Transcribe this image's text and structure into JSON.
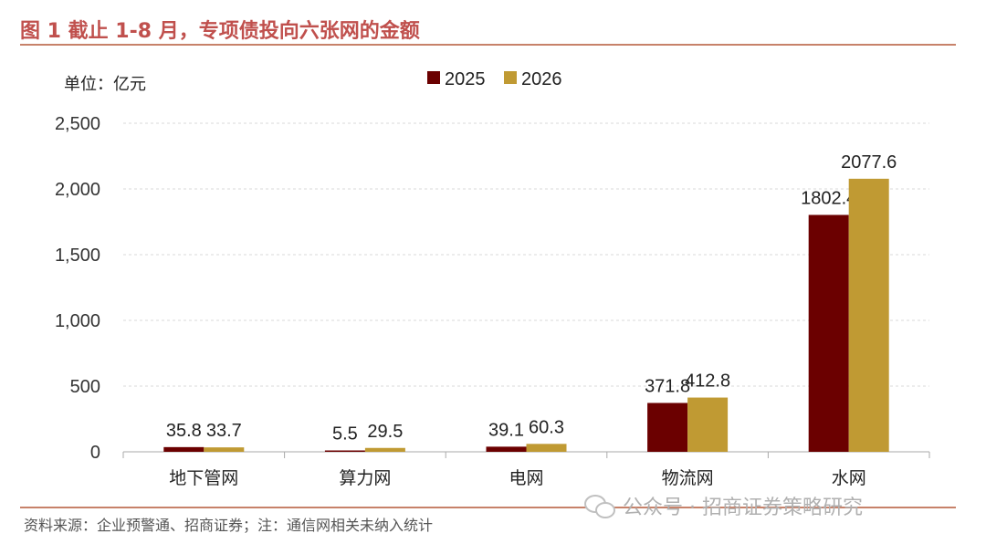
{
  "title": "图 1 截止 1-8 月，专项债投向六张网的金额",
  "unit_label": "单位：亿元",
  "source": "资料来源：企业预警通、招商证券；注：通信网相关未纳入统计",
  "watermark": "公众号 · 招商证券策略研究",
  "colors": {
    "title": "#c0504d",
    "rule": "#c7826a",
    "s2025": "#6b0000",
    "s2026": "#c09a33"
  },
  "chart_data": {
    "type": "bar",
    "categories": [
      "地下管网",
      "算力网",
      "电网",
      "物流网",
      "水网"
    ],
    "series": [
      {
        "name": "2025",
        "values": [
          35.8,
          5.5,
          39.1,
          371.8,
          1802.4
        ],
        "labels": [
          "35.8",
          "5.5",
          "39.1",
          "371.8",
          "1802.4"
        ]
      },
      {
        "name": "2026",
        "values": [
          33.7,
          29.5,
          60.3,
          412.8,
          2077.6
        ],
        "labels": [
          "33.7",
          "29.5",
          "60.3",
          "412.8",
          "2077.6"
        ]
      }
    ],
    "ylim": [
      0,
      2500
    ],
    "yticks": [
      "0",
      "500",
      "1,000",
      "1,500",
      "2,000",
      "2,500"
    ],
    "ytick_values": [
      0,
      500,
      1000,
      1500,
      2000,
      2500
    ],
    "grid": true,
    "legend": "top-center"
  }
}
